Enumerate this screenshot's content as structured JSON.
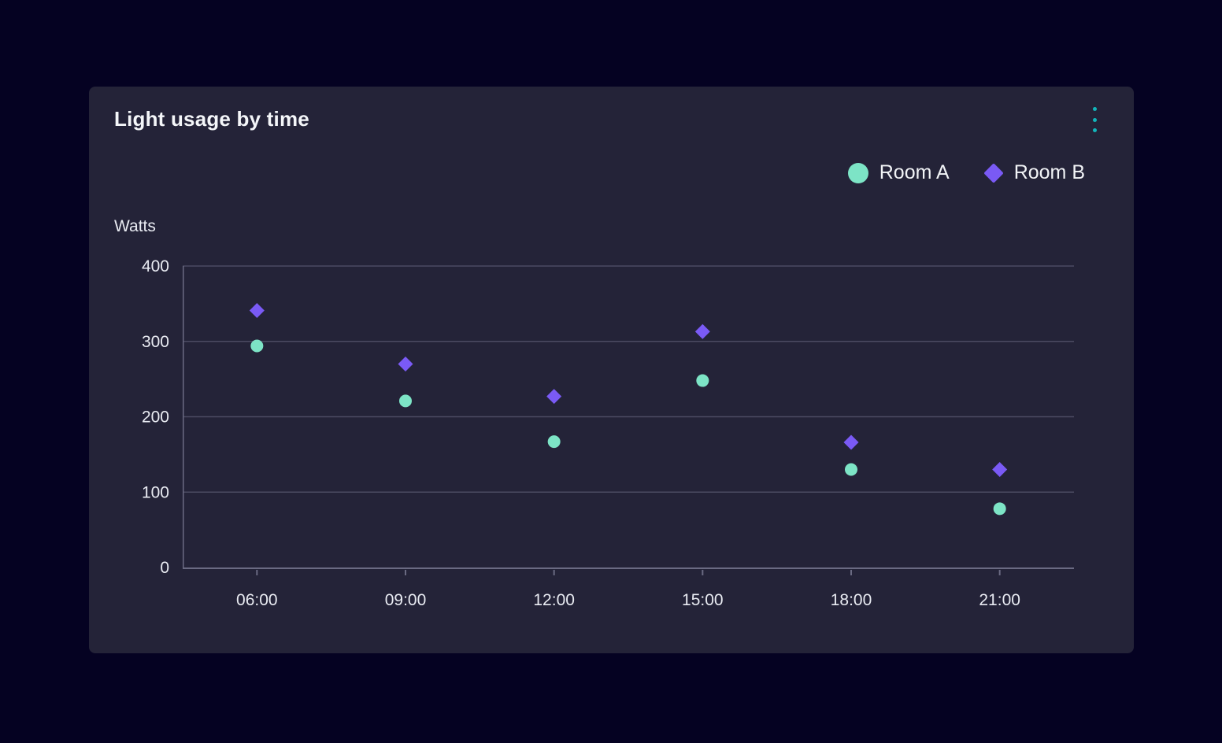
{
  "page": {
    "background": "#050222"
  },
  "card": {
    "title": "Light usage by time",
    "background": "#242338",
    "menu_icon": "kebab-menu-icon",
    "menu_color": "#12b5ba"
  },
  "legend": {
    "items": [
      {
        "label": "Room A",
        "marker": "circle",
        "color": "#7de4c6"
      },
      {
        "label": "Room B",
        "marker": "diamond",
        "color": "#7a5af5"
      }
    ]
  },
  "chart_data": {
    "type": "scatter",
    "title": "Light usage by time",
    "ylabel": "Watts",
    "xlabel": "",
    "categories": [
      "06:00",
      "09:00",
      "12:00",
      "15:00",
      "18:00",
      "21:00"
    ],
    "series": [
      {
        "name": "Room A",
        "marker": "circle",
        "color": "#7de4c6",
        "values": [
          294,
          221,
          167,
          248,
          130,
          78
        ]
      },
      {
        "name": "Room B",
        "marker": "diamond",
        "color": "#7a5af5",
        "values": [
          341,
          270,
          227,
          313,
          166,
          130
        ]
      }
    ],
    "ylim": [
      0,
      400
    ],
    "y_ticks": [
      0,
      100,
      200,
      300,
      400
    ],
    "grid": "horizontal",
    "legend_position": "top-right",
    "colors": {
      "grid": "#4b4b62",
      "axis": "#6a6a82",
      "tick_label": "#e9ebf2"
    }
  }
}
